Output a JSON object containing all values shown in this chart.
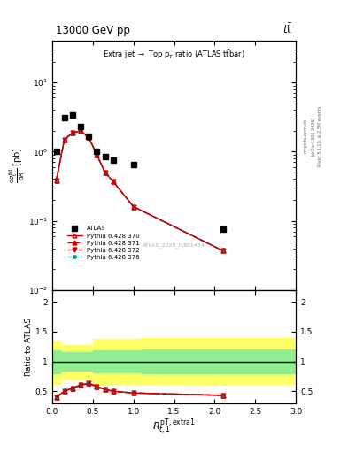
{
  "title_top": "13000 GeV pp",
  "title_right": "t$\\bar{t}$",
  "plot_title": "Extra jet → Top p$_T$ ratio (ATLAS t$\\bar{t}$bar)",
  "atlas_label": "ATLAS_2020_I1801434",
  "rivet_label": "Rivet 3.1.10, ≥ 2.5M events",
  "arxiv_label": "[arXiv:1306.3436]",
  "mcplots_label": "mcplots.cern.ch",
  "xlabel": "$R_{t,1}^{\\mathrm{pT,extra1}}$",
  "ylabel": "$\\frac{\\mathrm{d}\\sigma^{\\mathrm{fid}}_{\\mathrm{t}}}{\\mathrm{d}R}$ [pb]",
  "ratio_ylabel": "Ratio to ATLAS",
  "xlim": [
    0,
    3
  ],
  "ylim_log": [
    0.01,
    40
  ],
  "ratio_ylim": [
    0.3,
    2.2
  ],
  "ratio_yticks": [
    0.5,
    1.0,
    1.5,
    2.0
  ],
  "ratio_yticklabels": [
    "0.5",
    "1",
    "1.5",
    "2"
  ],
  "atlas_x": [
    0.05,
    0.15,
    0.25,
    0.35,
    0.45,
    0.55,
    0.65,
    0.75,
    1.0,
    2.1
  ],
  "atlas_y": [
    1.0,
    3.1,
    3.4,
    2.3,
    1.65,
    1.0,
    0.85,
    0.75,
    0.65,
    0.075
  ],
  "mc_x": [
    0.05,
    0.15,
    0.25,
    0.35,
    0.45,
    0.55,
    0.65,
    0.75,
    1.0,
    2.1
  ],
  "py370_y": [
    0.38,
    1.5,
    1.85,
    2.0,
    1.6,
    0.9,
    0.5,
    0.37,
    0.16,
    0.037
  ],
  "py371_y": [
    0.38,
    1.5,
    1.85,
    2.0,
    1.6,
    0.9,
    0.5,
    0.37,
    0.16,
    0.037
  ],
  "py372_y": [
    0.38,
    1.5,
    1.85,
    2.0,
    1.6,
    0.9,
    0.5,
    0.37,
    0.16,
    0.037
  ],
  "py376_y": [
    0.38,
    1.5,
    1.85,
    2.0,
    1.6,
    0.9,
    0.5,
    0.37,
    0.16,
    0.037
  ],
  "ratio370_y": [
    0.4,
    0.5,
    0.55,
    0.6,
    0.63,
    0.57,
    0.53,
    0.5,
    0.47,
    0.43
  ],
  "ratio371_y": [
    0.4,
    0.5,
    0.55,
    0.6,
    0.64,
    0.58,
    0.53,
    0.5,
    0.47,
    0.43
  ],
  "ratio372_y": [
    0.4,
    0.5,
    0.55,
    0.61,
    0.64,
    0.58,
    0.53,
    0.5,
    0.47,
    0.43
  ],
  "ratio376_y": [
    0.4,
    0.5,
    0.55,
    0.6,
    0.63,
    0.57,
    0.53,
    0.5,
    0.47,
    0.43
  ],
  "band_edges": [
    0.0,
    0.1,
    0.2,
    0.3,
    0.5,
    1.1,
    3.0
  ],
  "green_lo": [
    0.8,
    0.85,
    0.85,
    0.85,
    0.82,
    0.8
  ],
  "green_hi": [
    1.18,
    1.15,
    1.15,
    1.15,
    1.18,
    1.2
  ],
  "yellow_lo": [
    0.62,
    0.7,
    0.7,
    0.7,
    0.62,
    0.62
  ],
  "yellow_hi": [
    1.35,
    1.28,
    1.28,
    1.28,
    1.38,
    1.4
  ],
  "color_370": "#cc0000",
  "color_371": "#cc0000",
  "color_372": "#cc0000",
  "color_376": "#009999",
  "color_atlas": "#000000",
  "color_green": "#90ee90",
  "color_yellow": "#ffff66",
  "legend_entries": [
    "ATLAS",
    "Pythia 6.428 370",
    "Pythia 6.428 371",
    "Pythia 6.428 372",
    "Pythia 6.428 376"
  ]
}
